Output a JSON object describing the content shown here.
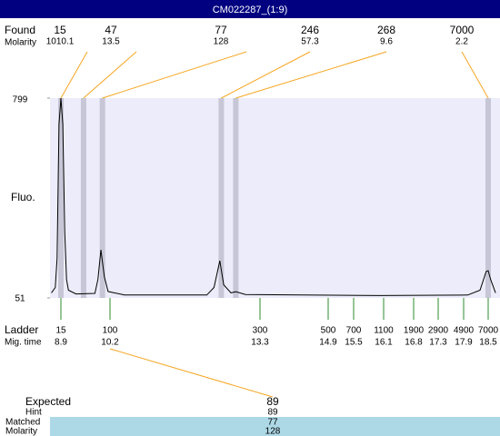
{
  "title": "CM022287_(1:9)",
  "found": {
    "label": "Found",
    "molarity_label": "Molarity",
    "sizes": [
      15,
      47,
      77,
      246,
      268,
      7000
    ],
    "molarities": [
      1010.1,
      13.5,
      128,
      57.3,
      9.6,
      2.2
    ],
    "times": [
      8.9,
      9.5,
      10.0,
      12.5,
      12.8,
      18.5
    ]
  },
  "y_axis": {
    "label": "Fluo.",
    "ylim": [
      51,
      799
    ],
    "yticks": [
      51,
      799
    ]
  },
  "ladder": {
    "label": "Ladder",
    "time_label": "Mig. time",
    "sizes": [
      15,
      100,
      300,
      500,
      700,
      1100,
      1900,
      2900,
      4900,
      7000
    ],
    "times": [
      8.9,
      10.2,
      13.3,
      14.9,
      15.5,
      16.1,
      16.8,
      17.3,
      17.9,
      18.5
    ]
  },
  "trace": {
    "x": [
      8.65,
      8.75,
      8.8,
      8.85,
      8.9,
      8.95,
      9.0,
      9.05,
      9.1,
      9.3,
      9.8,
      9.88,
      9.96,
      10.05,
      10.15,
      10.5,
      12.2,
      12.35,
      12.47,
      12.55,
      12.7,
      12.8,
      13.0,
      16.0,
      18.0,
      18.3,
      18.45,
      18.5,
      18.56,
      18.68
    ],
    "values": [
      70,
      90,
      200,
      700,
      799,
      700,
      300,
      120,
      80,
      66,
      68,
      120,
      231,
      130,
      75,
      62,
      62,
      90,
      190,
      100,
      70,
      74,
      64,
      60,
      62,
      80,
      150,
      153,
      120,
      70
    ]
  },
  "expected": {
    "label": "Expected",
    "value": 89
  },
  "hint": {
    "label": "Hint",
    "value": 89
  },
  "matched": {
    "label": "Matched",
    "value": 77
  },
  "molarity": {
    "label": "Molarity",
    "value": 128
  }
}
